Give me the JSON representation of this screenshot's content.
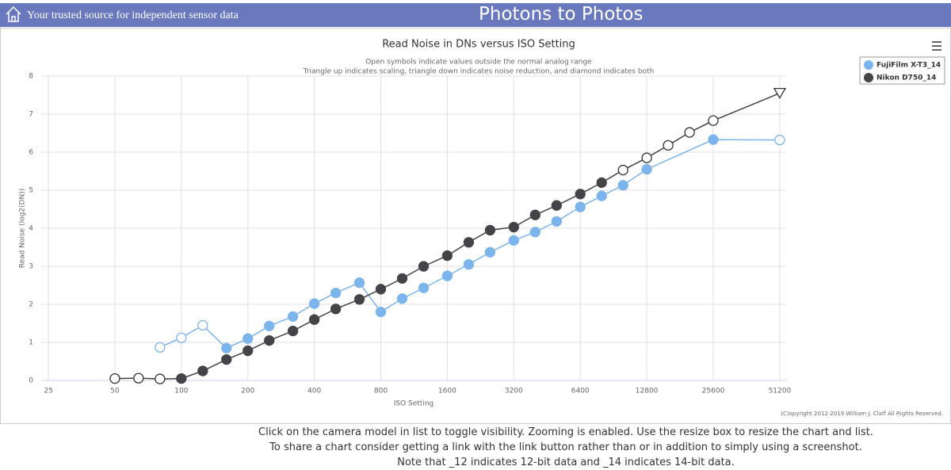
{
  "header": {
    "tagline": "Your trusted source for independent sensor data",
    "site": "Photons to Photos"
  },
  "chart_data": {
    "type": "line",
    "title": "Read Noise in DNs versus ISO Setting",
    "subtitle": [
      "Open symbols indicate values outside the normal analog range",
      "Triangle up indicates scaling, triangle down indicates noise reduction, and diamond indicates both"
    ],
    "x_label": "ISO Setting",
    "y_label": "Read Noise (log2(DN))",
    "x_log_base": 2,
    "xlim": [
      23.2,
      55200
    ],
    "xticks": [
      25,
      50,
      100,
      200,
      400,
      800,
      1600,
      3200,
      6400,
      12800,
      25600,
      51200
    ],
    "ylim": [
      0,
      8
    ],
    "yticks": [
      0,
      1,
      2,
      3,
      4,
      5,
      6,
      7,
      8
    ],
    "grid": true,
    "legend": "upper-right-outside",
    "series": [
      {
        "name": "FujiFilm X-T3_14",
        "color": "#7cb5ec",
        "x": [
          80,
          100,
          125,
          160,
          200,
          250,
          320,
          400,
          500,
          640,
          800,
          1000,
          1250,
          1600,
          2000,
          2500,
          3200,
          4000,
          5000,
          6400,
          8000,
          10000,
          12800,
          25600,
          51200
        ],
        "values": [
          0.87,
          1.12,
          1.45,
          0.85,
          1.1,
          1.43,
          1.68,
          2.02,
          2.3,
          2.57,
          1.8,
          2.15,
          2.43,
          2.75,
          3.05,
          3.37,
          3.68,
          3.9,
          4.18,
          4.56,
          4.85,
          5.13,
          5.55,
          6.33,
          6.32
        ],
        "markers": [
          "open",
          "open",
          "open",
          "filled",
          "filled",
          "filled",
          "filled",
          "filled",
          "filled",
          "filled",
          "filled",
          "filled",
          "filled",
          "filled",
          "filled",
          "filled",
          "filled",
          "filled",
          "filled",
          "filled",
          "filled",
          "filled",
          "filled",
          "filled",
          "open"
        ]
      },
      {
        "name": "Nikon D750_14",
        "color": "#434348",
        "x": [
          50,
          64,
          80,
          100,
          125,
          160,
          200,
          250,
          320,
          400,
          500,
          640,
          800,
          1000,
          1250,
          1600,
          2000,
          2500,
          3200,
          4000,
          5000,
          6400,
          8000,
          10000,
          12800,
          16000,
          20000,
          25600,
          51200
        ],
        "values": [
          0.05,
          0.06,
          0.04,
          0.05,
          0.25,
          0.55,
          0.78,
          1.05,
          1.3,
          1.6,
          1.88,
          2.13,
          2.4,
          2.68,
          3.0,
          3.28,
          3.63,
          3.95,
          4.03,
          4.35,
          4.6,
          4.9,
          5.2,
          5.53,
          5.85,
          6.18,
          6.52,
          6.83,
          7.55
        ],
        "markers": [
          "open",
          "open",
          "open",
          "filled",
          "filled",
          "filled",
          "filled",
          "filled",
          "filled",
          "filled",
          "filled",
          "filled",
          "filled",
          "filled",
          "filled",
          "filled",
          "filled",
          "filled",
          "filled",
          "filled",
          "filled",
          "filled",
          "filled",
          "open",
          "open",
          "open",
          "open",
          "open",
          "triangle-down"
        ]
      }
    ],
    "copyright": "(C)opyright 2012-2019 William J. Claff All Rights Reserved."
  },
  "notes": [
    "Click on the camera model in list to toggle visibility. Zooming is enabled. Use the resize box to resize the chart and list.",
    "To share a chart consider getting a link with the link button rather than or in addition to simply using a screenshot.",
    "Note that _12 indicates 12-bit data and _14 indicates 14-bit data."
  ]
}
